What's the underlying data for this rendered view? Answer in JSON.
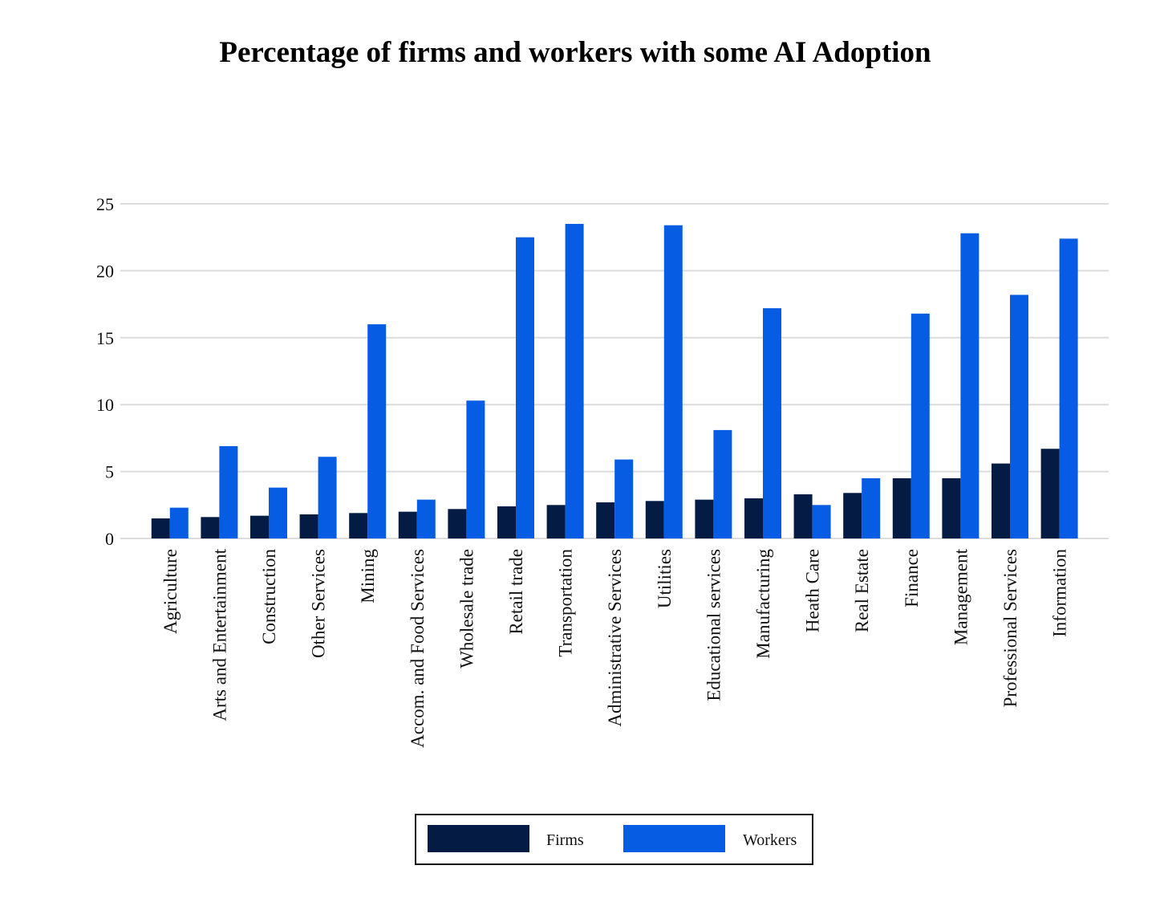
{
  "chart_data": {
    "type": "bar",
    "title": "Percentage of firms and workers with some AI Adoption",
    "xlabel": "",
    "ylabel": "",
    "ylim": [
      0,
      25
    ],
    "yticks": [
      0,
      5,
      10,
      15,
      20,
      25
    ],
    "grid": true,
    "legend_position": "bottom",
    "categories": [
      "Agriculture",
      "Arts and Entertainment",
      "Construction",
      "Other Services",
      "Mining",
      "Accom. and Food Services",
      "Wholesale trade",
      "Retail trade",
      "Transportation",
      "Administrative Services",
      "Utilities",
      "Educational services",
      "Manufacturing",
      "Heath Care",
      "Real Estate",
      "Finance",
      "Management",
      "Professional Services",
      "Information"
    ],
    "series": [
      {
        "name": "Firms",
        "color": "#041c44",
        "values": [
          1.5,
          1.6,
          1.7,
          1.8,
          1.9,
          2.0,
          2.2,
          2.4,
          2.5,
          2.7,
          2.8,
          2.9,
          3.0,
          3.3,
          3.4,
          4.5,
          4.5,
          5.6,
          6.7
        ]
      },
      {
        "name": "Workers",
        "color": "#075ce4",
        "values": [
          2.3,
          6.9,
          3.8,
          6.1,
          16.0,
          2.9,
          10.3,
          22.5,
          23.5,
          5.9,
          23.4,
          8.1,
          17.2,
          2.5,
          4.5,
          16.8,
          22.8,
          18.2,
          22.4
        ]
      }
    ]
  }
}
